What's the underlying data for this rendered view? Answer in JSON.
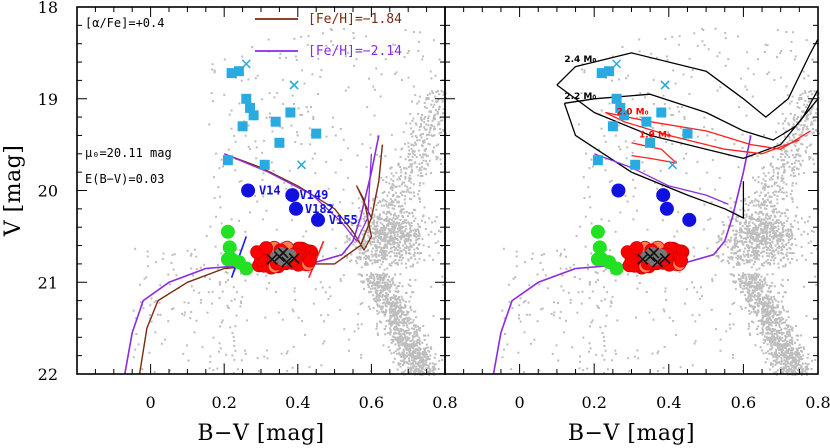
{
  "chart_data": [
    {
      "type": "scatter",
      "panel": "left",
      "xlabel": "B−V [mag]",
      "ylabel": "V [mag]",
      "xlim": [
        -0.2,
        0.8
      ],
      "ylim": [
        22,
        18
      ],
      "xticks": [
        "0",
        "0.2",
        "0.4",
        "0.6",
        "0.8"
      ],
      "yticks": [
        "18",
        "19",
        "20",
        "21",
        "22"
      ],
      "annotations": [
        "[α/Fe]=+0.4",
        "μ₀=20.11 mag",
        "E(B−V)=0.03"
      ],
      "legend": [
        {
          "label": "[Fe/H]=−1.84",
          "color": "#7a2a10"
        },
        {
          "label": "[Fe/H]=−2.14",
          "color": "#8a2be2"
        }
      ],
      "star_labels": [
        {
          "name": "V14",
          "x": 0.27,
          "y": 20.0
        },
        {
          "name": "V149",
          "x": 0.38,
          "y": 20.05
        },
        {
          "name": "V182",
          "x": 0.395,
          "y": 20.2
        },
        {
          "name": "V155",
          "x": 0.46,
          "y": 20.32
        }
      ]
    },
    {
      "type": "scatter",
      "panel": "right",
      "xlabel": "B−V [mag]",
      "ylabel": "",
      "xlim": [
        -0.2,
        0.8
      ],
      "ylim": [
        22,
        18
      ],
      "xticks": [
        "0",
        "0.2",
        "0.4",
        "0.6",
        "0.8"
      ],
      "yticks": [],
      "mass_labels": [
        {
          "text": "2.4 M₀",
          "x": 0.12,
          "y": 18.6,
          "color": "#000000"
        },
        {
          "text": "2.2 M₀",
          "x": 0.12,
          "y": 19.0,
          "color": "#000000"
        },
        {
          "text": "2.0 M₀",
          "x": 0.26,
          "y": 19.17,
          "color": "#ff0000"
        },
        {
          "text": "1.9 M₀",
          "x": 0.32,
          "y": 19.42,
          "color": "#ff0000"
        }
      ]
    }
  ],
  "colors": {
    "field": "#bdbdbd",
    "square": "#29abe2",
    "rrlyr": "#ff0000",
    "rrlyr_edge": "#d00000",
    "rrlyr_alt": "#ff7f50",
    "hb_green": "#22e022",
    "blue_dot": "#1010e0",
    "feh184": "#7a2a10",
    "feh214": "#8a2be2",
    "black": "#000000",
    "red_track": "#ff2020"
  }
}
